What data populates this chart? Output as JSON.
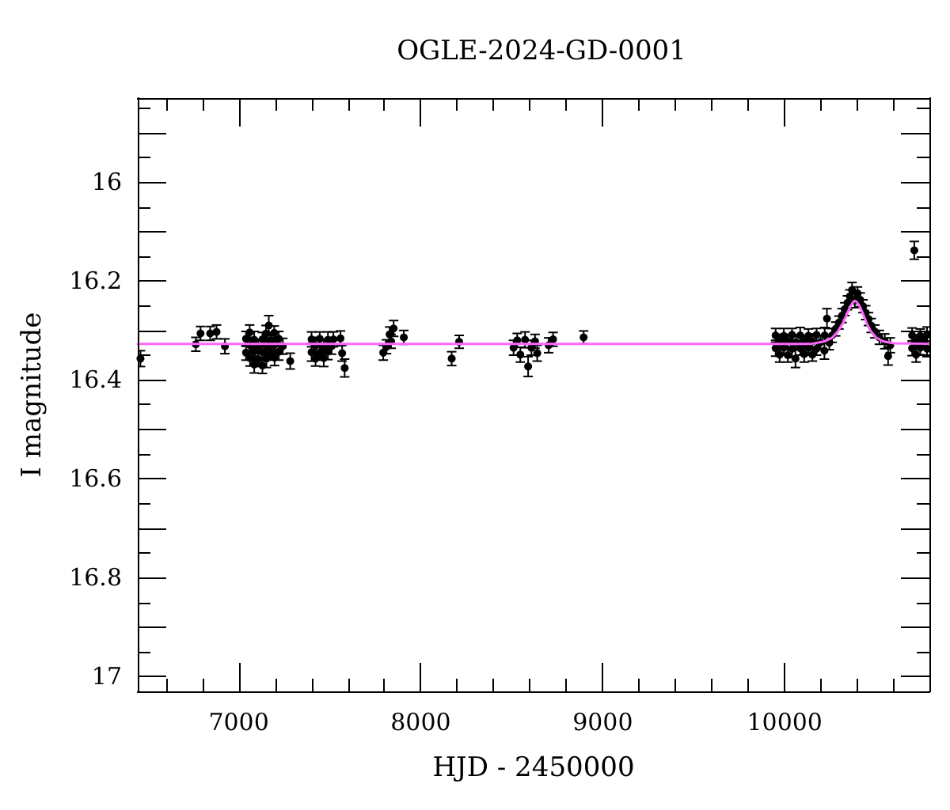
{
  "chart_data": {
    "type": "scatter",
    "title": "OGLE-2024-GD-0001",
    "xlabel": "HJD - 2450000",
    "ylabel": "I magnitude",
    "xlim": [
      6445,
      10795
    ],
    "ylim": [
      17.03,
      15.83
    ],
    "xticks": [
      {
        "value": 6600,
        "label": null
      },
      {
        "value": 6800,
        "label": null
      },
      7000,
      {
        "value": 7200,
        "label": null
      },
      {
        "value": 7400,
        "label": null
      },
      {
        "value": 7600,
        "label": null
      },
      {
        "value": 7800,
        "label": null
      },
      8000,
      {
        "value": 8200,
        "label": null
      },
      {
        "value": 8400,
        "label": null
      },
      {
        "value": 8600,
        "label": null
      },
      {
        "value": 8800,
        "label": null
      },
      9000,
      {
        "value": 9200,
        "label": null
      },
      {
        "value": 9400,
        "label": null
      },
      {
        "value": 9600,
        "label": null
      },
      {
        "value": 9800,
        "label": null
      },
      10000,
      {
        "value": 10200,
        "label": null
      },
      {
        "value": 10400,
        "label": null
      },
      {
        "value": 10600,
        "label": null
      }
    ],
    "yticks": [
      {
        "value": 15.85,
        "label": null
      },
      {
        "value": 15.9,
        "label": null
      },
      {
        "value": 15.95,
        "label": null
      },
      16,
      {
        "value": 16.05,
        "label": null
      },
      {
        "value": 16.1,
        "label": null
      },
      {
        "value": 16.15,
        "label": null
      },
      16.2,
      {
        "value": 16.25,
        "label": null
      },
      {
        "value": 16.3,
        "label": null
      },
      {
        "value": 16.35,
        "label": null
      },
      16.4,
      {
        "value": 16.45,
        "label": null
      },
      {
        "value": 16.5,
        "label": null
      },
      {
        "value": 16.55,
        "label": null
      },
      16.6,
      {
        "value": 16.65,
        "label": null
      },
      {
        "value": 16.7,
        "label": null
      },
      {
        "value": 16.75,
        "label": null
      },
      16.8,
      {
        "value": 16.85,
        "label": null
      },
      {
        "value": 16.9,
        "label": null
      },
      {
        "value": 16.95,
        "label": null
      },
      17
    ],
    "series": [
      {
        "color": "#000000",
        "marker": "circle",
        "x": [
          6460,
          6764,
          6790,
          6843,
          6878,
          6924,
          7060,
          7150,
          7195,
          7040,
          7085,
          7130,
          7175,
          7220,
          7062,
          7107,
          7152,
          7197,
          7242,
          7040,
          7085,
          7130,
          7175,
          7220,
          7062,
          7107,
          7152,
          7197,
          7085,
          7130,
          7165,
          7283,
          7400,
          7445,
          7490,
          7520,
          7422,
          7467,
          7510,
          7400,
          7445,
          7490,
          7422,
          7467,
          7559,
          7568,
          7582,
          7794,
          7812,
          7829,
          7837,
          7851,
          7907,
          8170,
          8211,
          8510,
          8530,
          8547,
          8573,
          8590,
          8608,
          8628,
          8640,
          8703,
          8727,
          8895,
          9950,
          9995,
          10040,
          10085,
          10130,
          10175,
          10220,
          9972,
          10017,
          10062,
          10107,
          10152,
          10197,
          9950,
          9995,
          10040,
          10085,
          10130,
          10175,
          9972,
          10017,
          10107,
          10152,
          10059,
          10218,
          10232,
          10245,
          10260,
          10280,
          10298,
          10315,
          10330,
          10345,
          10358,
          10370,
          10385,
          10400,
          10415,
          10430,
          10445,
          10460,
          10475,
          10495,
          10520,
          10550,
          10568,
          10580,
          10700,
          10745,
          10782,
          10722,
          10765,
          10700,
          10745,
          10782,
          10722,
          10712
        ],
        "values": [
          16.357,
          16.328,
          16.306,
          16.306,
          16.303,
          16.332,
          16.304,
          16.306,
          16.305,
          16.317,
          16.319,
          16.318,
          16.32,
          16.317,
          16.33,
          16.332,
          16.331,
          16.329,
          16.332,
          16.345,
          16.343,
          16.344,
          16.346,
          16.343,
          16.356,
          16.358,
          16.357,
          16.355,
          16.369,
          16.371,
          16.29,
          16.362,
          16.318,
          16.317,
          16.319,
          16.318,
          16.331,
          16.332,
          16.332,
          16.344,
          16.345,
          16.343,
          16.357,
          16.356,
          16.316,
          16.346,
          16.376,
          16.345,
          16.333,
          16.308,
          16.322,
          16.296,
          16.314,
          16.357,
          16.323,
          16.335,
          16.32,
          16.349,
          16.319,
          16.373,
          16.335,
          16.322,
          16.346,
          16.33,
          16.318,
          16.314,
          16.31,
          16.311,
          16.309,
          16.31,
          16.311,
          16.309,
          16.31,
          16.323,
          16.322,
          16.324,
          16.323,
          16.322,
          16.324,
          16.336,
          16.335,
          16.337,
          16.336,
          16.335,
          16.337,
          16.349,
          16.35,
          16.348,
          16.349,
          16.357,
          16.341,
          16.276,
          16.325,
          16.31,
          16.297,
          16.284,
          16.27,
          16.257,
          16.244,
          16.231,
          16.218,
          16.24,
          16.225,
          16.238,
          16.251,
          16.264,
          16.277,
          16.29,
          16.302,
          16.314,
          16.322,
          16.352,
          16.33,
          16.31,
          16.311,
          16.309,
          16.323,
          16.322,
          16.336,
          16.335,
          16.337,
          16.349,
          16.138
        ],
        "errors": [
          0.016,
          0.014,
          0.014,
          0.014,
          0.014,
          0.015,
          0.015,
          0.016,
          0.014,
          0.015,
          0.017,
          0.014,
          0.016,
          0.015,
          0.016,
          0.014,
          0.017,
          0.015,
          0.016,
          0.015,
          0.018,
          0.016,
          0.014,
          0.017,
          0.016,
          0.015,
          0.018,
          0.016,
          0.017,
          0.016,
          0.02,
          0.016,
          0.015,
          0.014,
          0.016,
          0.015,
          0.017,
          0.014,
          0.016,
          0.018,
          0.015,
          0.016,
          0.015,
          0.017,
          0.015,
          0.016,
          0.018,
          0.015,
          0.014,
          0.015,
          0.014,
          0.016,
          0.014,
          0.014,
          0.013,
          0.015,
          0.014,
          0.015,
          0.016,
          0.02,
          0.015,
          0.014,
          0.016,
          0.015,
          0.014,
          0.013,
          0.014,
          0.015,
          0.013,
          0.016,
          0.014,
          0.013,
          0.016,
          0.015,
          0.014,
          0.015,
          0.013,
          0.015,
          0.014,
          0.016,
          0.015,
          0.018,
          0.014,
          0.015,
          0.013,
          0.015,
          0.014,
          0.016,
          0.013,
          0.018,
          0.017,
          0.02,
          0.014,
          0.014,
          0.014,
          0.013,
          0.014,
          0.013,
          0.014,
          0.013,
          0.015,
          0.014,
          0.013,
          0.014,
          0.013,
          0.014,
          0.013,
          0.014,
          0.013,
          0.014,
          0.015,
          0.018,
          0.015,
          0.015,
          0.014,
          0.016,
          0.014,
          0.013,
          0.015,
          0.014,
          0.016,
          0.015,
          0.018
        ]
      },
      {
        "type": "line",
        "color": "#ff66ff",
        "marker": "none",
        "line_style": "solid",
        "x": [
          6445,
          10150,
          10220,
          10260,
          10290,
          10320,
          10340,
          10360,
          10375,
          10385,
          10395,
          10410,
          10430,
          10450,
          10470,
          10500,
          10540,
          10600,
          10795
        ],
        "values": [
          16.327,
          16.327,
          16.322,
          16.315,
          16.303,
          16.285,
          16.268,
          16.252,
          16.243,
          16.24,
          16.242,
          16.25,
          16.266,
          16.285,
          16.3,
          16.314,
          16.322,
          16.326,
          16.327
        ]
      }
    ]
  }
}
